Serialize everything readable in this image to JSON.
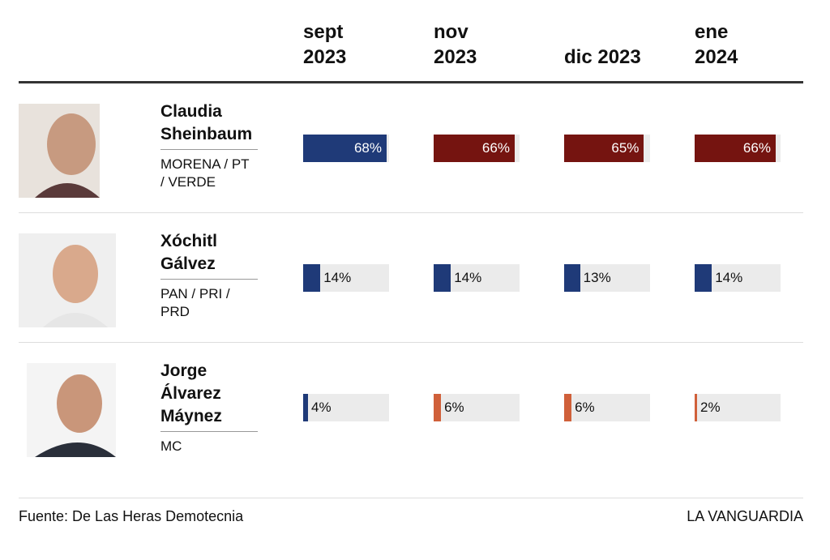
{
  "chart_data": {
    "type": "table-bars",
    "columns": [
      "sept\n2023",
      "nov\n2023",
      "dic 2023",
      "ene\n2024"
    ],
    "xlim": [
      0,
      70
    ],
    "track_color": "#ebebeb",
    "candidates": [
      {
        "name": "Claudia Sheinbaum",
        "party": "MORENA / PT / VERDE",
        "values": [
          68,
          66,
          65,
          66
        ],
        "value_labels": [
          "68%",
          "66%",
          "65%",
          "66%"
        ],
        "colors": [
          "#1f3a78",
          "#751410",
          "#751410",
          "#751410"
        ]
      },
      {
        "name": "Xóchitl Gálvez",
        "party": "PAN / PRI / PRD",
        "values": [
          14,
          14,
          13,
          14
        ],
        "value_labels": [
          "14%",
          "14%",
          "13%",
          "14%"
        ],
        "colors": [
          "#1f3a78",
          "#1f3a78",
          "#1f3a78",
          "#1f3a78"
        ]
      },
      {
        "name": "Jorge Álvarez Máynez",
        "party": "MC",
        "values": [
          4,
          6,
          6,
          2
        ],
        "value_labels": [
          "4%",
          "6%",
          "6%",
          "2%"
        ],
        "colors": [
          "#1f3a78",
          "#d0603a",
          "#d0603a",
          "#d0603a"
        ]
      }
    ],
    "source": "Fuente: De Las Heras Demotecnia",
    "brand": "LA VANGUARDIA"
  }
}
